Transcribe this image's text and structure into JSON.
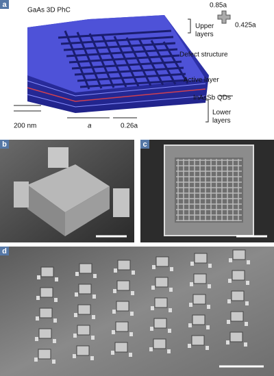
{
  "panels": {
    "a": "a",
    "b": "b",
    "c": "c",
    "d": "d"
  },
  "schematic": {
    "title": "GaAs 3D PhC",
    "upper_layers": [
      "Upper",
      "layers"
    ],
    "width_label": "0.85a",
    "arm_label": "0.425a",
    "defect": "Defect structure",
    "active": "Active layer",
    "qds": "InAsSb QDs",
    "lower_layers": [
      "Lower",
      "layers"
    ],
    "thickness": "200 nm",
    "period": "a",
    "rod_width": "0.26a"
  }
}
